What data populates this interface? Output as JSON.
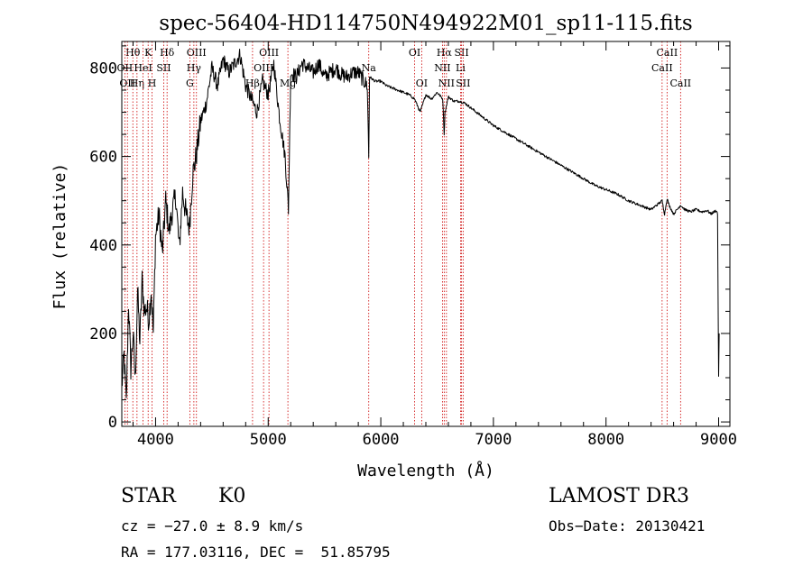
{
  "chart_data": {
    "type": "line",
    "title": "spec-56404-HD114750N494922M01_sp11-115.fits",
    "xlabel": "Wavelength (Å)",
    "ylabel": "Flux (relative)",
    "xlim": [
      3700,
      9100
    ],
    "ylim": [
      -10,
      860
    ],
    "x_ticks": [
      4000,
      5000,
      6000,
      7000,
      8000,
      9000
    ],
    "y_ticks": [
      0,
      200,
      400,
      600,
      800
    ],
    "grid": false,
    "line_color": "#000000",
    "marker_color": "#cc0000",
    "series": [
      {
        "name": "flux",
        "x": [
          3700,
          3720,
          3740,
          3760,
          3780,
          3800,
          3820,
          3840,
          3860,
          3880,
          3900,
          3920,
          3940,
          3960,
          3980,
          4000,
          4030,
          4060,
          4090,
          4120,
          4150,
          4180,
          4210,
          4240,
          4270,
          4300,
          4330,
          4360,
          4400,
          4450,
          4500,
          4550,
          4600,
          4650,
          4700,
          4750,
          4800,
          4850,
          4900,
          4950,
          5000,
          5050,
          5100,
          5150,
          5180,
          5200,
          5250,
          5300,
          5350,
          5400,
          5450,
          5500,
          5550,
          5600,
          5650,
          5700,
          5750,
          5800,
          5850,
          5880,
          5893,
          5900,
          5950,
          6000,
          6050,
          6100,
          6150,
          6200,
          6250,
          6300,
          6350,
          6400,
          6450,
          6500,
          6550,
          6563,
          6570,
          6600,
          6650,
          6700,
          6750,
          6800,
          6900,
          7000,
          7100,
          7200,
          7300,
          7400,
          7500,
          7600,
          7700,
          7800,
          7900,
          8000,
          8100,
          8200,
          8300,
          8400,
          8498,
          8520,
          8542,
          8560,
          8600,
          8662,
          8700,
          8750,
          8800,
          8850,
          8900,
          8930,
          8960,
          8980,
          8990,
          9000,
          9005
        ],
        "y": [
          80,
          150,
          40,
          270,
          120,
          200,
          90,
          300,
          180,
          320,
          250,
          260,
          230,
          300,
          200,
          420,
          470,
          380,
          500,
          430,
          480,
          510,
          390,
          520,
          470,
          440,
          560,
          600,
          680,
          720,
          800,
          760,
          820,
          790,
          810,
          830,
          760,
          730,
          700,
          770,
          740,
          810,
          690,
          600,
          480,
          790,
          780,
          810,
          800,
          790,
          810,
          780,
          790,
          800,
          785,
          780,
          790,
          790,
          770,
          760,
          600,
          780,
          770,
          770,
          760,
          755,
          750,
          745,
          740,
          730,
          700,
          740,
          730,
          745,
          730,
          650,
          700,
          735,
          725,
          725,
          720,
          710,
          690,
          670,
          655,
          640,
          625,
          610,
          595,
          580,
          565,
          550,
          535,
          525,
          515,
          500,
          490,
          480,
          500,
          470,
          505,
          490,
          470,
          490,
          480,
          475,
          480,
          475,
          478,
          470,
          475,
          478,
          470,
          100,
          200
        ]
      }
    ],
    "line_markers": [
      {
        "label": "Hθ",
        "wave": 3798,
        "row": 1
      },
      {
        "label": "OII",
        "wave": 3727,
        "row": 2
      },
      {
        "label": "OII",
        "wave": 3750,
        "row": 3
      },
      {
        "label": "Hη",
        "wave": 3835,
        "row": 3
      },
      {
        "label": "K",
        "wave": 3934,
        "row": 1
      },
      {
        "label": "HeI",
        "wave": 3889,
        "row": 2
      },
      {
        "label": "H",
        "wave": 3969,
        "row": 3
      },
      {
        "label": "Hδ",
        "wave": 4102,
        "row": 1
      },
      {
        "label": "SII",
        "wave": 4072,
        "row": 2
      },
      {
        "label": "OIII",
        "wave": 4363,
        "row": 1
      },
      {
        "label": "Hγ",
        "wave": 4340,
        "row": 2
      },
      {
        "label": "G",
        "wave": 4304,
        "row": 3
      },
      {
        "label": "Hβ",
        "wave": 4861,
        "row": 3
      },
      {
        "label": "OIII",
        "wave": 5007,
        "row": 1
      },
      {
        "label": "OIII",
        "wave": 4959,
        "row": 2
      },
      {
        "label": "Mg",
        "wave": 5175,
        "row": 3
      },
      {
        "label": "Na",
        "wave": 5893,
        "row": 2
      },
      {
        "label": "OI",
        "wave": 6300,
        "row": 1
      },
      {
        "label": "OI",
        "wave": 6363,
        "row": 3
      },
      {
        "label": "Hα",
        "wave": 6563,
        "row": 1
      },
      {
        "label": "NII",
        "wave": 6548,
        "row": 2
      },
      {
        "label": "NII",
        "wave": 6583,
        "row": 3
      },
      {
        "label": "SII",
        "wave": 6717,
        "row": 1
      },
      {
        "label": "Li",
        "wave": 6708,
        "row": 2
      },
      {
        "label": "SII",
        "wave": 6731,
        "row": 3
      },
      {
        "label": "CaII",
        "wave": 8542,
        "row": 1
      },
      {
        "label": "CaII",
        "wave": 8498,
        "row": 2
      },
      {
        "label": "CaII",
        "wave": 8662,
        "row": 3
      }
    ]
  },
  "info": {
    "object_class": "STAR",
    "subclass": "K0",
    "survey": "LAMOST DR3",
    "redshift_text": "cz = −27.0 ± 8.9 km/s",
    "obs_date_text": "Obs−Date: 20130421",
    "coords_text": "RA = 177.03116, DEC =  51.85795"
  }
}
